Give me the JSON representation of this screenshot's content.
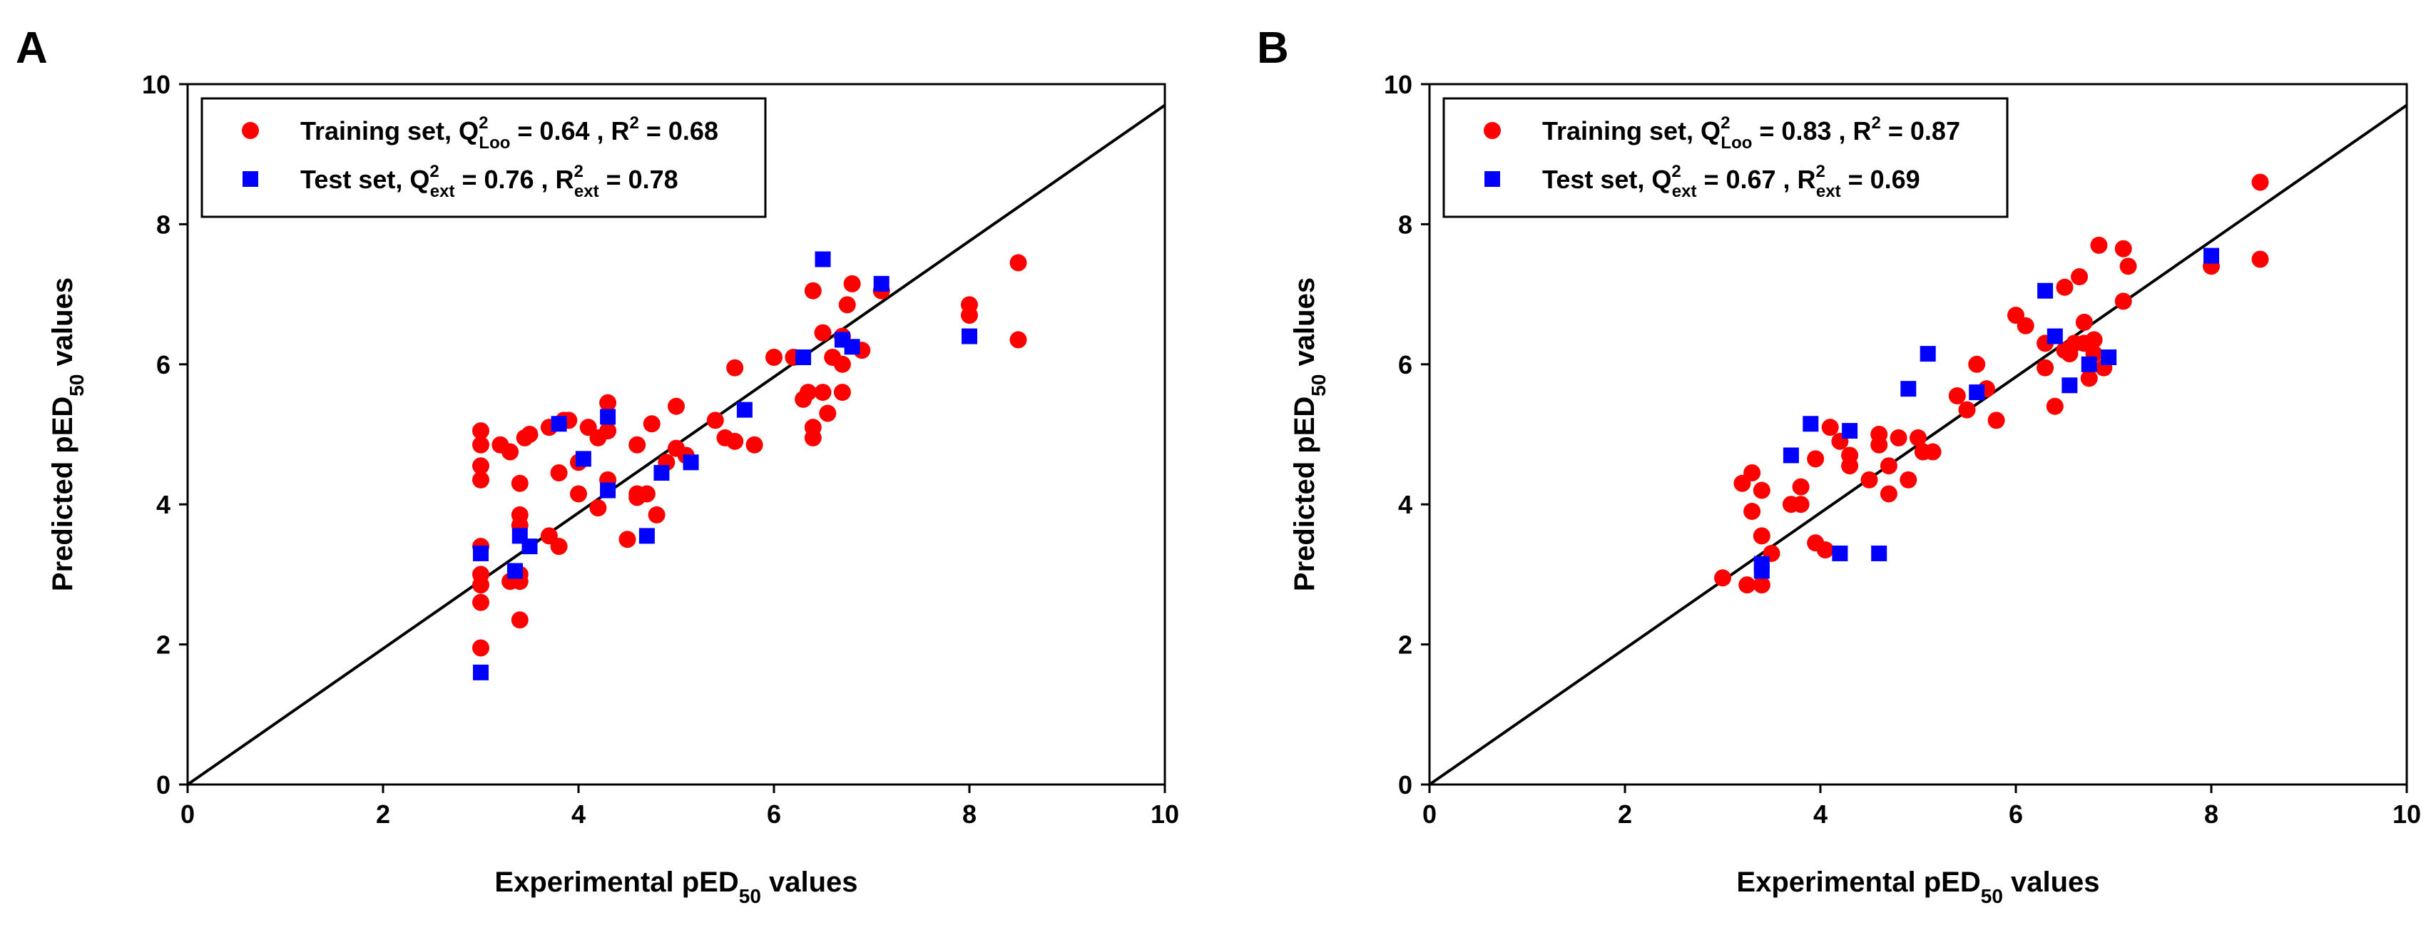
{
  "chart_data": [
    {
      "type": "scatter",
      "panel_label": "A",
      "xlabel": {
        "pre": "Experimental pED",
        "sub": "50",
        "post": " values"
      },
      "ylabel": {
        "pre": "Predicted pED",
        "sub": "50",
        "post": " values"
      },
      "xlim": [
        0,
        10
      ],
      "ylim": [
        0,
        10
      ],
      "xticks": [
        "0",
        "2",
        "4",
        "6",
        "8",
        "10"
      ],
      "yticks": [
        "0",
        "2",
        "4",
        "6",
        "8",
        "10"
      ],
      "reference_line": {
        "x": [
          0,
          10
        ],
        "y": [
          0,
          9.7
        ]
      },
      "legend": {
        "position": "top-left",
        "entries": [
          {
            "series": "training",
            "parts": [
              "Training set, Q",
              "2",
              "Loo",
              " = 0.64 , R",
              "2",
              "",
              " = 0.68"
            ]
          },
          {
            "series": "test",
            "parts": [
              "Test set, Q",
              "2",
              "ext",
              " = 0.76 , R",
              "2",
              "ext",
              " = 0.78"
            ]
          }
        ]
      },
      "series": [
        {
          "name": "training",
          "label": "Training set",
          "marker": "circle",
          "color": "#ff0000",
          "points": [
            [
              3.0,
              5.05
            ],
            [
              3.0,
              4.85
            ],
            [
              3.0,
              4.55
            ],
            [
              3.0,
              4.35
            ],
            [
              3.0,
              3.4
            ],
            [
              3.0,
              3.0
            ],
            [
              3.0,
              2.85
            ],
            [
              3.0,
              2.6
            ],
            [
              3.0,
              1.95
            ],
            [
              3.2,
              4.85
            ],
            [
              3.3,
              2.9
            ],
            [
              3.3,
              4.75
            ],
            [
              3.4,
              4.3
            ],
            [
              3.4,
              3.85
            ],
            [
              3.4,
              3.7
            ],
            [
              3.4,
              3.0
            ],
            [
              3.4,
              2.9
            ],
            [
              3.4,
              2.35
            ],
            [
              3.45,
              4.95
            ],
            [
              3.5,
              5.0
            ],
            [
              3.7,
              5.1
            ],
            [
              3.7,
              3.55
            ],
            [
              3.8,
              3.4
            ],
            [
              3.8,
              4.45
            ],
            [
              3.85,
              5.2
            ],
            [
              3.9,
              5.2
            ],
            [
              4.0,
              4.6
            ],
            [
              4.0,
              4.15
            ],
            [
              4.1,
              5.1
            ],
            [
              4.2,
              3.95
            ],
            [
              4.2,
              4.95
            ],
            [
              4.3,
              5.45
            ],
            [
              4.3,
              5.05
            ],
            [
              4.3,
              4.35
            ],
            [
              4.5,
              3.5
            ],
            [
              4.6,
              4.15
            ],
            [
              4.6,
              4.1
            ],
            [
              4.6,
              4.85
            ],
            [
              4.7,
              4.15
            ],
            [
              4.75,
              5.15
            ],
            [
              4.8,
              3.85
            ],
            [
              4.9,
              4.6
            ],
            [
              5.0,
              4.8
            ],
            [
              5.0,
              5.4
            ],
            [
              5.1,
              4.7
            ],
            [
              5.4,
              5.2
            ],
            [
              5.5,
              4.95
            ],
            [
              5.6,
              5.95
            ],
            [
              5.6,
              4.9
            ],
            [
              5.8,
              4.85
            ],
            [
              6.0,
              6.1
            ],
            [
              6.2,
              6.1
            ],
            [
              6.3,
              5.5
            ],
            [
              6.35,
              5.6
            ],
            [
              6.4,
              7.05
            ],
            [
              6.4,
              5.1
            ],
            [
              6.4,
              4.95
            ],
            [
              6.5,
              6.45
            ],
            [
              6.5,
              5.6
            ],
            [
              6.55,
              5.3
            ],
            [
              6.6,
              6.1
            ],
            [
              6.7,
              6.4
            ],
            [
              6.7,
              6.0
            ],
            [
              6.7,
              5.6
            ],
            [
              6.75,
              6.85
            ],
            [
              6.8,
              7.15
            ],
            [
              6.9,
              6.2
            ],
            [
              7.1,
              7.05
            ],
            [
              8.0,
              6.85
            ],
            [
              8.0,
              6.7
            ],
            [
              8.5,
              7.45
            ],
            [
              8.5,
              6.35
            ]
          ]
        },
        {
          "name": "test",
          "label": "Test set",
          "marker": "square",
          "color": "#0000ff",
          "points": [
            [
              3.0,
              3.3
            ],
            [
              3.0,
              1.6
            ],
            [
              3.35,
              3.05
            ],
            [
              3.4,
              3.55
            ],
            [
              3.5,
              3.4
            ],
            [
              3.8,
              5.15
            ],
            [
              4.05,
              4.65
            ],
            [
              4.3,
              5.25
            ],
            [
              4.3,
              4.2
            ],
            [
              4.7,
              3.55
            ],
            [
              4.85,
              4.45
            ],
            [
              5.15,
              4.6
            ],
            [
              5.7,
              5.35
            ],
            [
              6.3,
              6.1
            ],
            [
              6.5,
              7.5
            ],
            [
              6.7,
              6.35
            ],
            [
              6.8,
              6.25
            ],
            [
              7.1,
              7.15
            ],
            [
              8.0,
              6.4
            ]
          ]
        }
      ]
    },
    {
      "type": "scatter",
      "panel_label": "B",
      "xlabel": {
        "pre": "Experimental pED",
        "sub": "50",
        "post": " values"
      },
      "ylabel": {
        "pre": "Predicted pED",
        "sub": "50",
        "post": " values"
      },
      "xlim": [
        0,
        10
      ],
      "ylim": [
        0,
        10
      ],
      "xticks": [
        "0",
        "2",
        "4",
        "6",
        "8",
        "10"
      ],
      "yticks": [
        "0",
        "2",
        "4",
        "6",
        "8",
        "10"
      ],
      "reference_line": {
        "x": [
          0,
          10
        ],
        "y": [
          0,
          9.7
        ]
      },
      "legend": {
        "position": "top-left",
        "entries": [
          {
            "series": "training",
            "parts": [
              "Training set, Q",
              "2",
              "Loo",
              " = 0.83 , R",
              "2",
              "",
              " = 0.87"
            ]
          },
          {
            "series": "test",
            "parts": [
              "Test set, Q",
              "2",
              "ext",
              " = 0.67 , R",
              "2",
              "ext",
              " = 0.69"
            ]
          }
        ]
      },
      "series": [
        {
          "name": "training",
          "label": "Training set",
          "marker": "circle",
          "color": "#ff0000",
          "points": [
            [
              3.0,
              2.95
            ],
            [
              3.2,
              4.3
            ],
            [
              3.25,
              2.85
            ],
            [
              3.3,
              4.45
            ],
            [
              3.3,
              3.9
            ],
            [
              3.4,
              4.2
            ],
            [
              3.4,
              3.55
            ],
            [
              3.4,
              2.85
            ],
            [
              3.5,
              3.3
            ],
            [
              3.7,
              4.0
            ],
            [
              3.8,
              4.25
            ],
            [
              3.8,
              4.0
            ],
            [
              3.95,
              4.65
            ],
            [
              3.95,
              3.45
            ],
            [
              4.05,
              3.35
            ],
            [
              4.1,
              5.1
            ],
            [
              4.2,
              4.9
            ],
            [
              4.3,
              4.7
            ],
            [
              4.3,
              4.55
            ],
            [
              4.5,
              4.35
            ],
            [
              4.6,
              5.0
            ],
            [
              4.6,
              4.85
            ],
            [
              4.7,
              4.55
            ],
            [
              4.7,
              4.15
            ],
            [
              4.8,
              4.95
            ],
            [
              4.9,
              4.35
            ],
            [
              5.0,
              4.95
            ],
            [
              5.05,
              4.75
            ],
            [
              5.15,
              4.75
            ],
            [
              5.4,
              5.55
            ],
            [
              5.5,
              5.35
            ],
            [
              5.6,
              6.0
            ],
            [
              5.7,
              5.65
            ],
            [
              5.8,
              5.2
            ],
            [
              6.0,
              6.7
            ],
            [
              6.1,
              6.55
            ],
            [
              6.3,
              5.95
            ],
            [
              6.3,
              6.3
            ],
            [
              6.4,
              5.4
            ],
            [
              6.5,
              7.1
            ],
            [
              6.5,
              6.2
            ],
            [
              6.55,
              6.15
            ],
            [
              6.6,
              6.3
            ],
            [
              6.65,
              7.25
            ],
            [
              6.7,
              6.6
            ],
            [
              6.7,
              6.3
            ],
            [
              6.75,
              5.8
            ],
            [
              6.8,
              6.15
            ],
            [
              6.8,
              6.35
            ],
            [
              6.85,
              7.7
            ],
            [
              6.9,
              5.95
            ],
            [
              7.1,
              6.9
            ],
            [
              7.1,
              7.65
            ],
            [
              7.15,
              7.4
            ],
            [
              8.0,
              7.4
            ],
            [
              8.5,
              8.6
            ],
            [
              8.5,
              7.5
            ]
          ]
        },
        {
          "name": "test",
          "label": "Test set",
          "marker": "square",
          "color": "#0000ff",
          "points": [
            [
              3.4,
              3.15
            ],
            [
              3.4,
              3.05
            ],
            [
              3.7,
              4.7
            ],
            [
              3.9,
              5.15
            ],
            [
              4.2,
              3.3
            ],
            [
              4.3,
              5.05
            ],
            [
              4.6,
              3.3
            ],
            [
              4.9,
              5.65
            ],
            [
              5.1,
              6.15
            ],
            [
              5.6,
              5.6
            ],
            [
              6.3,
              7.05
            ],
            [
              6.4,
              6.4
            ],
            [
              6.55,
              5.7
            ],
            [
              6.75,
              6.0
            ],
            [
              6.95,
              6.1
            ],
            [
              8.0,
              7.55
            ]
          ]
        }
      ]
    }
  ]
}
